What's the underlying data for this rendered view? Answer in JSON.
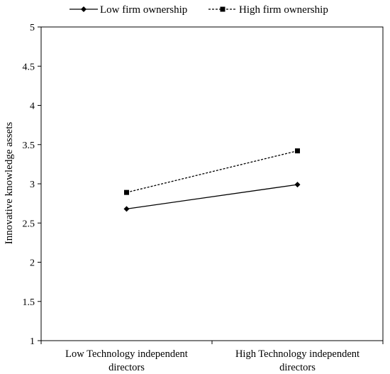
{
  "chart_data": {
    "type": "line",
    "title": "",
    "xlabel": "",
    "ylabel": "Innovative knowledge assets",
    "categories": [
      [
        "Low Technology independent",
        "directors"
      ],
      [
        "High Technology independent",
        "directors"
      ]
    ],
    "ylim": [
      1,
      5
    ],
    "yticks": [
      "1",
      "1.5",
      "2",
      "2.5",
      "3",
      "3.5",
      "4",
      "4.5",
      "5"
    ],
    "grid": false,
    "legend_position": "top",
    "series": [
      {
        "name": "Low firm ownership",
        "values": [
          2.68,
          2.99
        ],
        "line_style": "solid",
        "marker": "diamond",
        "color": "#000000"
      },
      {
        "name": "High firm ownership",
        "values": [
          2.89,
          3.42
        ],
        "line_style": "dashed",
        "marker": "square",
        "color": "#000000"
      }
    ]
  }
}
